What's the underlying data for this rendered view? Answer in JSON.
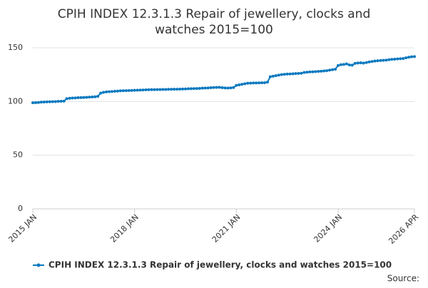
{
  "chart_data": {
    "type": "line",
    "title": "CPIH INDEX 12.3.1.3 Repair of jewellery, clocks and watches 2015=100",
    "source": "Source:",
    "categories": [
      "2015 JAN",
      null,
      null,
      null,
      null,
      null,
      null,
      null,
      null,
      null,
      null,
      null,
      null,
      null,
      null,
      null,
      null,
      null,
      null,
      null,
      null,
      null,
      null,
      null,
      null,
      null,
      null,
      null,
      null,
      null,
      null,
      null,
      null,
      null,
      null,
      null,
      "2018 JAN",
      null,
      null,
      null,
      null,
      null,
      null,
      null,
      null,
      null,
      null,
      null,
      null,
      null,
      null,
      null,
      null,
      null,
      null,
      null,
      null,
      null,
      null,
      null,
      null,
      null,
      null,
      null,
      null,
      null,
      null,
      null,
      null,
      null,
      null,
      null,
      "2021 JAN",
      null,
      null,
      null,
      null,
      null,
      null,
      null,
      null,
      null,
      null,
      null,
      null,
      null,
      null,
      null,
      null,
      null,
      null,
      null,
      null,
      null,
      null,
      null,
      null,
      null,
      null,
      null,
      null,
      null,
      null,
      null,
      null,
      null,
      null,
      null,
      "2024 JAN",
      null,
      null,
      null,
      null,
      null,
      null,
      null,
      null,
      null,
      null,
      null,
      null,
      null,
      null,
      null,
      null,
      null,
      null,
      null,
      null,
      null,
      null,
      null,
      null,
      null,
      null,
      "2026 APR"
    ],
    "series": [
      {
        "name": "CPIH INDEX 12.3.1.3 Repair of jewellery, clocks and watches 2015=100",
        "color": "#0b79bf",
        "values": [
          98.8,
          98.9,
          99.1,
          99.4,
          99.5,
          99.6,
          99.7,
          99.8,
          99.9,
          100.1,
          100.2,
          100.3,
          102.6,
          103.0,
          103.2,
          103.3,
          103.5,
          103.6,
          103.7,
          103.9,
          104.0,
          104.2,
          104.4,
          104.8,
          107.8,
          108.5,
          108.9,
          109.1,
          109.3,
          109.5,
          109.7,
          109.9,
          110.0,
          110.1,
          110.2,
          110.3,
          110.4,
          110.5,
          110.6,
          110.7,
          110.8,
          110.9,
          111.0,
          111.0,
          111.1,
          111.1,
          111.2,
          111.2,
          111.3,
          111.3,
          111.4,
          111.4,
          111.5,
          111.6,
          111.7,
          111.8,
          111.9,
          112.0,
          112.1,
          112.2,
          112.4,
          112.5,
          112.6,
          112.8,
          113.0,
          113.1,
          113.2,
          112.8,
          112.6,
          112.5,
          112.7,
          113.0,
          115.0,
          115.5,
          116.0,
          116.5,
          117.0,
          117.1,
          117.2,
          117.2,
          117.3,
          117.4,
          117.5,
          118.0,
          123.0,
          123.5,
          124.0,
          124.5,
          125.0,
          125.3,
          125.5,
          125.6,
          125.8,
          126.0,
          126.1,
          126.3,
          127.0,
          127.3,
          127.5,
          127.6,
          127.8,
          128.0,
          128.2,
          128.4,
          128.7,
          129.2,
          129.6,
          130.0,
          133.5,
          134.2,
          134.5,
          135.0,
          134.0,
          133.8,
          135.5,
          135.8,
          136.0,
          135.7,
          136.2,
          136.8,
          137.2,
          137.6,
          137.9,
          138.1,
          138.3,
          138.5,
          138.9,
          139.2,
          139.4,
          139.6,
          139.8,
          140.0,
          140.6,
          141.2,
          141.6,
          141.8
        ]
      }
    ],
    "ylim": [
      0,
      150
    ],
    "yticks": [
      0,
      50,
      100,
      150
    ],
    "grid": true,
    "legend": "bottom"
  }
}
